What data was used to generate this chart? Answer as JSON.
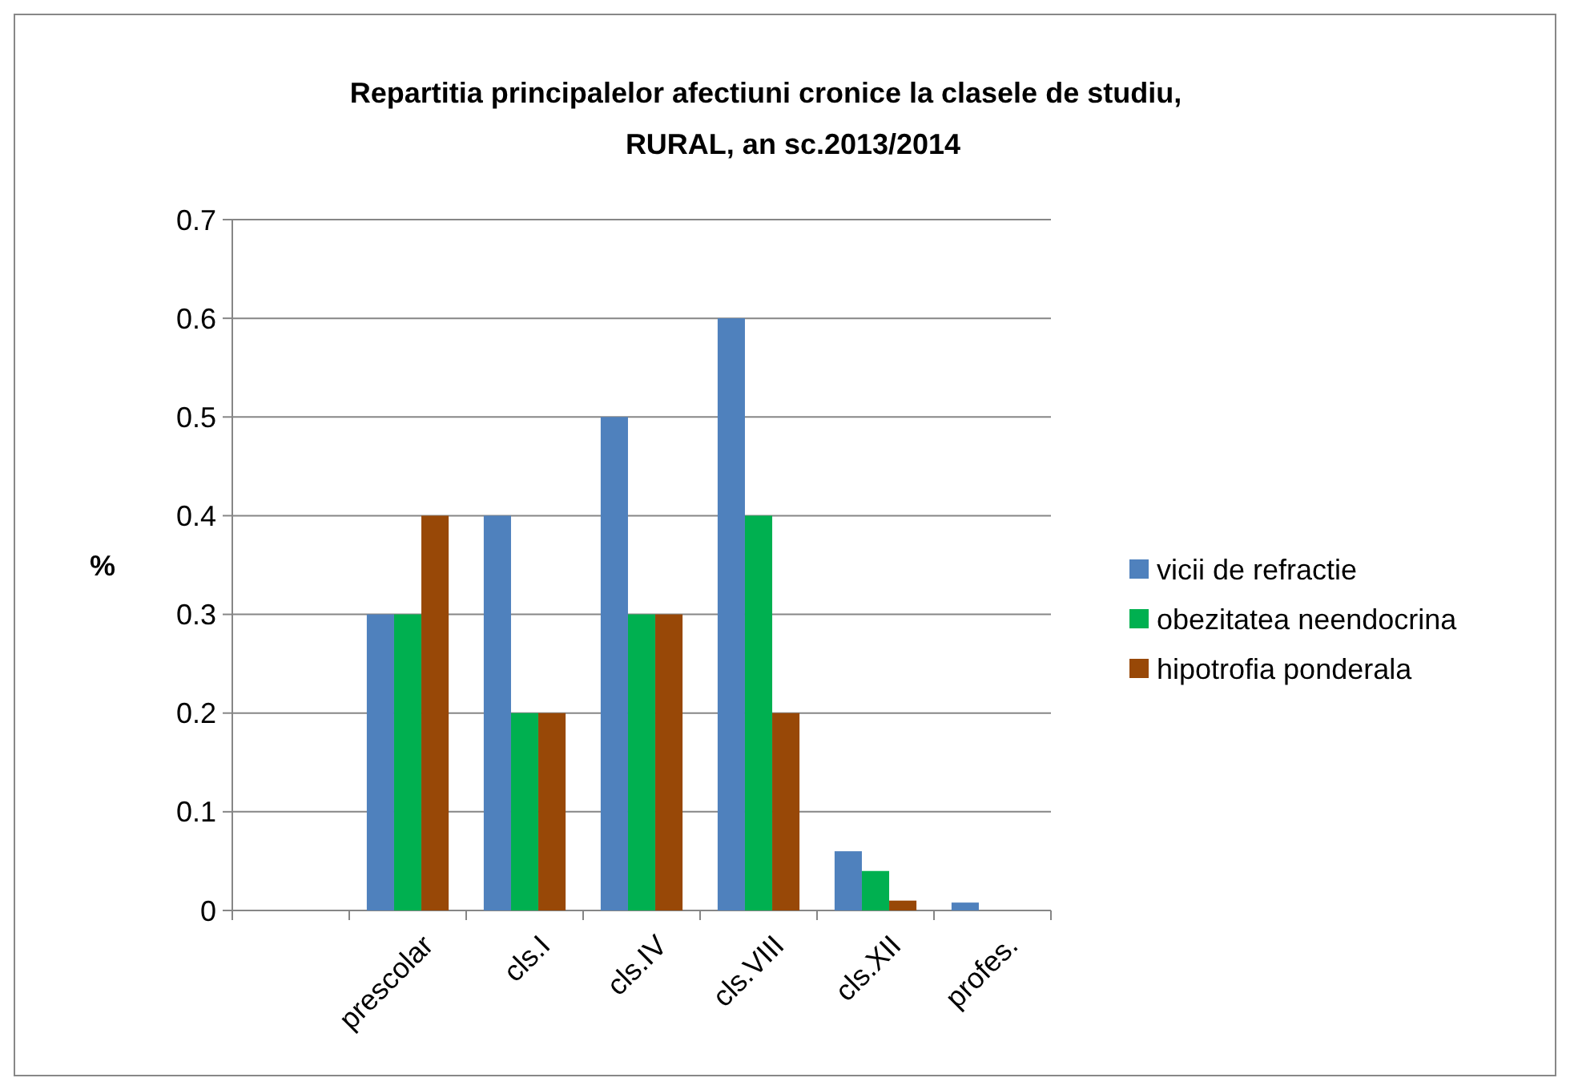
{
  "chart_data": {
    "type": "bar",
    "title": "Repartitia principalelor afectiuni cronice la clasele de studiu, RURAL, an sc.2013/2014",
    "ylabel": "%",
    "categories": [
      null,
      "prescolar",
      "cls.I",
      "cls.IV",
      "cls.VIII",
      "cls.XII",
      "profes."
    ],
    "series": [
      {
        "name": "vicii de refractie",
        "color": "#4f81bd",
        "values": [
          null,
          0.3,
          0.4,
          0.5,
          0.6,
          0.06,
          0.008
        ]
      },
      {
        "name": "obezitatea neendocrina",
        "color": "#00b050",
        "values": [
          null,
          0.3,
          0.2,
          0.3,
          0.4,
          0.04,
          0
        ]
      },
      {
        "name": "hipotrofia ponderala",
        "color": "#984807",
        "values": [
          null,
          0.4,
          0.2,
          0.3,
          0.2,
          0.01,
          0
        ]
      }
    ],
    "ylim": [
      0,
      0.7
    ],
    "yticks": [
      0,
      0.1,
      0.2,
      0.3,
      0.4,
      0.5,
      0.6,
      0.7
    ],
    "grid": "y",
    "legend": "right"
  }
}
